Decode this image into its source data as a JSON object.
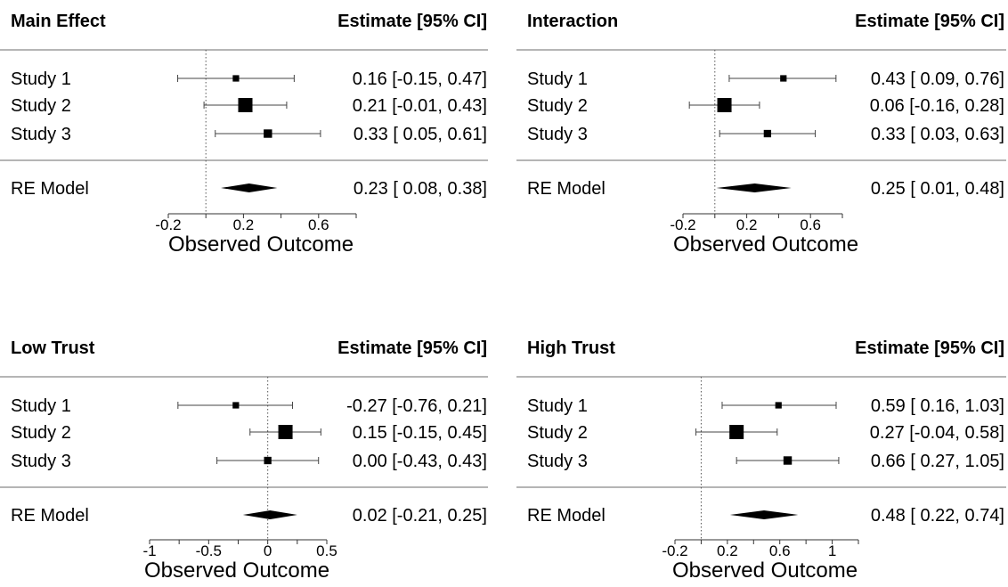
{
  "chart_data": [
    {
      "type": "forest",
      "title": "Main Effect",
      "estimate_header": "Estimate [95% CI]",
      "xlabel": "Observed Outcome",
      "ticks": [
        -0.2,
        0.2,
        0.6
      ],
      "tick_labels": [
        "-0.2",
        "0.2",
        "0.6"
      ],
      "reference_line": 0,
      "studies": [
        {
          "label": "Study 1",
          "estimate": 0.16,
          "lower": -0.15,
          "upper": 0.47,
          "text": "0.16 [-0.15, 0.47]",
          "weight": 0.2
        },
        {
          "label": "Study 2",
          "estimate": 0.21,
          "lower": -0.01,
          "upper": 0.43,
          "text": "0.21 [-0.01, 0.43]",
          "weight": 1.0
        },
        {
          "label": "Study 3",
          "estimate": 0.33,
          "lower": 0.05,
          "upper": 0.61,
          "text": "0.33 [ 0.05, 0.61]",
          "weight": 0.4
        }
      ],
      "summary": {
        "label": "RE Model",
        "estimate": 0.23,
        "lower": 0.08,
        "upper": 0.38,
        "text": "0.23 [ 0.08, 0.38]"
      }
    },
    {
      "type": "forest",
      "title": "Interaction",
      "estimate_header": "Estimate [95% CI]",
      "xlabel": "Observed Outcome",
      "ticks": [
        -0.2,
        0.2,
        0.6
      ],
      "tick_labels": [
        "-0.2",
        "0.2",
        "0.6"
      ],
      "reference_line": 0,
      "studies": [
        {
          "label": "Study 1",
          "estimate": 0.43,
          "lower": 0.09,
          "upper": 0.76,
          "text": "0.43 [ 0.09, 0.76]",
          "weight": 0.2
        },
        {
          "label": "Study 2",
          "estimate": 0.06,
          "lower": -0.16,
          "upper": 0.28,
          "text": "0.06 [-0.16, 0.28]",
          "weight": 1.0
        },
        {
          "label": "Study 3",
          "estimate": 0.33,
          "lower": 0.03,
          "upper": 0.63,
          "text": "0.33 [ 0.03, 0.63]",
          "weight": 0.3
        }
      ],
      "summary": {
        "label": "RE Model",
        "estimate": 0.25,
        "lower": 0.01,
        "upper": 0.48,
        "text": "0.25 [ 0.01, 0.48]"
      }
    },
    {
      "type": "forest",
      "title": "Low Trust",
      "estimate_header": "Estimate [95% CI]",
      "xlabel": "Observed Outcome",
      "ticks": [
        -1,
        -0.5,
        0,
        0.5
      ],
      "tick_labels": [
        "-1",
        "-0.5",
        "0",
        "0.5"
      ],
      "reference_line": 0,
      "studies": [
        {
          "label": "Study 1",
          "estimate": -0.27,
          "lower": -0.76,
          "upper": 0.21,
          "text": "-0.27 [-0.76, 0.21]",
          "weight": 0.2
        },
        {
          "label": "Study 2",
          "estimate": 0.15,
          "lower": -0.15,
          "upper": 0.45,
          "text": "0.15 [-0.15, 0.45]",
          "weight": 1.0
        },
        {
          "label": "Study 3",
          "estimate": 0.0,
          "lower": -0.43,
          "upper": 0.43,
          "text": "0.00 [-0.43, 0.43]",
          "weight": 0.3
        }
      ],
      "summary": {
        "label": "RE Model",
        "estimate": 0.02,
        "lower": -0.21,
        "upper": 0.25,
        "text": "0.02 [-0.21, 0.25]"
      }
    },
    {
      "type": "forest",
      "title": "High Trust",
      "estimate_header": "Estimate [95% CI]",
      "xlabel": "Observed Outcome",
      "ticks": [
        -0.2,
        0.2,
        0.6,
        1
      ],
      "tick_labels": [
        "-0.2",
        "0.2",
        "0.6",
        "1"
      ],
      "reference_line": 0,
      "studies": [
        {
          "label": "Study 1",
          "estimate": 0.59,
          "lower": 0.16,
          "upper": 1.03,
          "text": "0.59 [ 0.16, 1.03]",
          "weight": 0.2
        },
        {
          "label": "Study 2",
          "estimate": 0.27,
          "lower": -0.04,
          "upper": 0.58,
          "text": "0.27 [-0.04, 0.58]",
          "weight": 1.0
        },
        {
          "label": "Study 3",
          "estimate": 0.66,
          "lower": 0.27,
          "upper": 1.05,
          "text": "0.66 [ 0.27, 1.05]",
          "weight": 0.4
        }
      ],
      "summary": {
        "label": "RE Model",
        "estimate": 0.48,
        "lower": 0.22,
        "upper": 0.74,
        "text": "0.48 [ 0.22, 0.74]"
      }
    }
  ]
}
